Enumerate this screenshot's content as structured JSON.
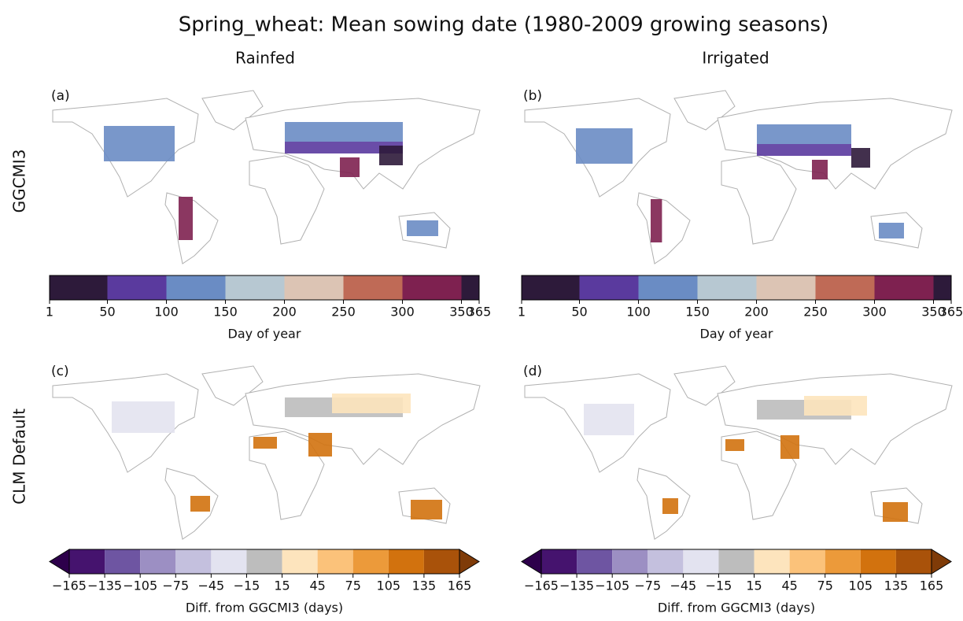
{
  "title": "Spring_wheat: Mean sowing date (1980-2009 growing seasons)",
  "columns": [
    "Rainfed",
    "Irrigated"
  ],
  "rows": [
    "GGCMI3",
    "CLM Default"
  ],
  "panels": [
    [
      "(a)",
      "(b)"
    ],
    [
      "(c)",
      "(d)"
    ]
  ],
  "colorbars": [
    {
      "label": "Day of year",
      "ticks": [
        1,
        50,
        100,
        150,
        200,
        250,
        300,
        350,
        365
      ],
      "colors": [
        "#2d1a3a",
        "#5a3a9e",
        "#6a8cc4",
        "#b7c8d2",
        "#dcc4b4",
        "#bf6a56",
        "#7e2150",
        "#2d1a3a"
      ]
    },
    {
      "label": "Diff. from GGCMI3 (days)",
      "ticks": [
        {
          "value": -165,
          "label": "−165"
        },
        {
          "value": -135,
          "label": "−135"
        },
        {
          "value": -105,
          "label": "−105"
        },
        {
          "value": -75,
          "label": "−75"
        },
        {
          "value": -45,
          "label": "−45"
        },
        {
          "value": -15,
          "label": "−15"
        },
        15,
        45,
        75,
        105,
        135,
        165
      ],
      "colors": [
        "#45136e",
        "#6e55a2",
        "#9c8fc3",
        "#c4c0de",
        "#e3e3f0",
        "#bdbdbd",
        "#fde4bd",
        "#fbc27a",
        "#ec9a3a",
        "#d2720e",
        "#a9520a"
      ],
      "extend_colors": [
        "#2d004b",
        "#7f3b08"
      ]
    }
  ]
}
